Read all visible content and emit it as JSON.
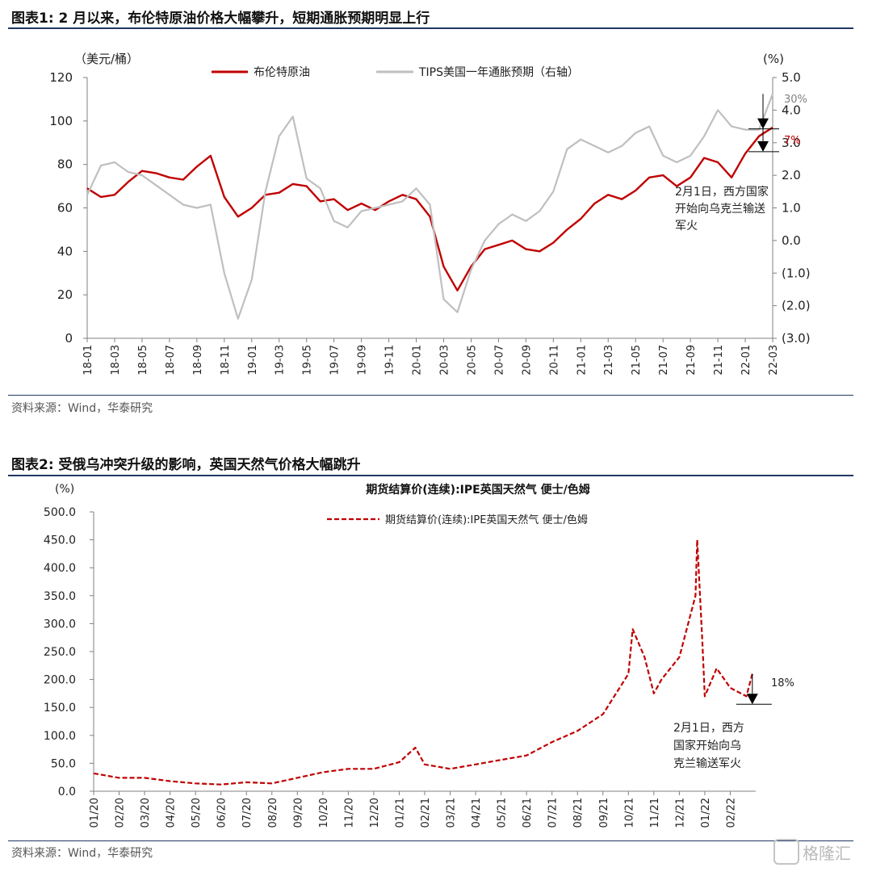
{
  "fig1": {
    "title": "图表1:   2 月以来，布伦特原油价格大幅攀升，短期通胀预期明显上行",
    "source": "资料来源：Wind，华泰研究",
    "annotation": [
      "2月1日，西方国家",
      "开始向乌克兰输送",
      "军火"
    ],
    "callout_grey": "30%",
    "callout_red": "7%"
  },
  "fig2": {
    "title": "图表2:   受俄乌冲突升级的影响，英国天然气价格大幅跳升",
    "source": "资料来源：Wind，华泰研究",
    "annotation": [
      "2月1日，西方",
      "国家开始向乌",
      "克兰输送军火"
    ],
    "callout": "18%"
  },
  "watermark": "格隆汇",
  "chart_data": [
    {
      "type": "line",
      "ylabel": "（美元/桶）",
      "y2label": "(%)",
      "ylim": [
        0,
        120
      ],
      "y2lim": [
        -3.0,
        5.0
      ],
      "yticks": [
        "0",
        "20",
        "40",
        "60",
        "80",
        "100",
        "120"
      ],
      "y2ticks": [
        "(3.0)",
        "(2.0)",
        "(1.0)",
        "0.0",
        "1.0",
        "2.0",
        "3.0",
        "4.0",
        "5.0"
      ],
      "x_range": [
        "2018-01",
        "2022-03"
      ],
      "xticks": [
        "18-01",
        "18-03",
        "18-05",
        "18-07",
        "18-09",
        "18-11",
        "19-01",
        "19-03",
        "19-05",
        "19-07",
        "19-09",
        "19-11",
        "20-01",
        "20-03",
        "20-05",
        "20-07",
        "20-09",
        "20-11",
        "21-01",
        "21-03",
        "21-05",
        "21-07",
        "21-09",
        "21-11",
        "22-01",
        "22-03"
      ],
      "grid": false,
      "legend": "top",
      "series": [
        {
          "name": "布伦特原油",
          "axis": "left",
          "color": "#c00000",
          "x": [
            "2018-01",
            "2018-02",
            "2018-03",
            "2018-04",
            "2018-05",
            "2018-06",
            "2018-07",
            "2018-08",
            "2018-09",
            "2018-10",
            "2018-11",
            "2018-12",
            "2019-01",
            "2019-02",
            "2019-03",
            "2019-04",
            "2019-05",
            "2019-06",
            "2019-07",
            "2019-08",
            "2019-09",
            "2019-10",
            "2019-11",
            "2019-12",
            "2020-01",
            "2020-02",
            "2020-03",
            "2020-04",
            "2020-05",
            "2020-06",
            "2020-07",
            "2020-08",
            "2020-09",
            "2020-10",
            "2020-11",
            "2020-12",
            "2021-01",
            "2021-02",
            "2021-03",
            "2021-04",
            "2021-05",
            "2021-06",
            "2021-07",
            "2021-08",
            "2021-09",
            "2021-10",
            "2021-11",
            "2021-12",
            "2022-01",
            "2022-02",
            "2022-03"
          ],
          "values": [
            69,
            65,
            66,
            72,
            77,
            76,
            74,
            73,
            79,
            84,
            65,
            56,
            60,
            66,
            67,
            71,
            70,
            63,
            64,
            59,
            62,
            59,
            63,
            66,
            64,
            56,
            33,
            22,
            33,
            41,
            43,
            45,
            41,
            40,
            44,
            50,
            55,
            62,
            66,
            64,
            68,
            74,
            75,
            70,
            74,
            83,
            81,
            74,
            85,
            93,
            97
          ]
        },
        {
          "name": "TIPS美国一年通胀预期（右轴）",
          "axis": "right",
          "color": "#bfbfbf",
          "x": [
            "2018-01",
            "2018-02",
            "2018-03",
            "2018-04",
            "2018-05",
            "2018-06",
            "2018-07",
            "2018-08",
            "2018-09",
            "2018-10",
            "2018-11",
            "2018-12",
            "2019-01",
            "2019-02",
            "2019-03",
            "2019-04",
            "2019-05",
            "2019-06",
            "2019-07",
            "2019-08",
            "2019-09",
            "2019-10",
            "2019-11",
            "2019-12",
            "2020-01",
            "2020-02",
            "2020-03",
            "2020-04",
            "2020-05",
            "2020-06",
            "2020-07",
            "2020-08",
            "2020-09",
            "2020-10",
            "2020-11",
            "2020-12",
            "2021-01",
            "2021-02",
            "2021-03",
            "2021-04",
            "2021-05",
            "2021-06",
            "2021-07",
            "2021-08",
            "2021-09",
            "2021-10",
            "2021-11",
            "2021-12",
            "2022-01",
            "2022-02",
            "2022-03"
          ],
          "values": [
            1.4,
            2.3,
            2.4,
            2.1,
            2.0,
            1.7,
            1.4,
            1.1,
            1.0,
            1.1,
            -1.0,
            -2.4,
            -1.2,
            1.5,
            3.2,
            3.8,
            1.9,
            1.6,
            0.6,
            0.4,
            0.9,
            1.0,
            1.1,
            1.2,
            1.6,
            1.1,
            -1.8,
            -2.2,
            -0.9,
            0.0,
            0.5,
            0.8,
            0.6,
            0.9,
            1.5,
            2.8,
            3.1,
            2.9,
            2.7,
            2.9,
            3.3,
            3.5,
            2.6,
            2.4,
            2.6,
            3.2,
            4.0,
            3.5,
            3.4,
            3.4,
            4.5
          ]
        }
      ],
      "annotations": [
        {
          "text": "30%",
          "date": "2022-03",
          "from": 4.5,
          "to": 3.5,
          "axis": "right"
        },
        {
          "text": "7%",
          "date": "2022-03",
          "from": 97,
          "to": 87,
          "axis": "left"
        }
      ]
    },
    {
      "type": "line",
      "title": "期货结算价(连续):IPE英国天然气 便士/色姆",
      "ylabel": "(%)",
      "ylim": [
        0,
        500
      ],
      "yticks": [
        "0.0",
        "50.0",
        "100.0",
        "150.0",
        "200.0",
        "250.0",
        "300.0",
        "350.0",
        "400.0",
        "450.0",
        "500.0"
      ],
      "x_range": [
        "2020-01",
        "2022-02"
      ],
      "xticks": [
        "01/20",
        "02/20",
        "03/20",
        "04/20",
        "05/20",
        "06/20",
        "07/20",
        "08/20",
        "09/20",
        "10/20",
        "11/20",
        "12/20",
        "01/21",
        "02/21",
        "03/21",
        "04/21",
        "05/21",
        "06/21",
        "07/21",
        "08/21",
        "09/21",
        "10/21",
        "11/21",
        "12/21",
        "01/22",
        "02/22"
      ],
      "grid": false,
      "legend": "top",
      "series": [
        {
          "name": "期货结算价(连续):IPE英国天然气 便士/色姆",
          "color": "#c00000",
          "style": "dashed",
          "x": [
            "2020-01",
            "2020-02",
            "2020-03",
            "2020-04",
            "2020-05",
            "2020-06",
            "2020-07",
            "2020-08",
            "2020-09",
            "2020-10",
            "2020-11",
            "2020-12",
            "2021-01",
            "2021-01-20",
            "2021-02",
            "2021-03",
            "2021-04",
            "2021-05",
            "2021-06",
            "2021-07",
            "2021-08",
            "2021-09",
            "2021-10",
            "2021-10-06",
            "2021-10-20",
            "2021-11",
            "2021-11-10",
            "2021-12",
            "2021-12-20",
            "2021-12-22",
            "2021-12-28",
            "2022-01",
            "2022-01-15",
            "2022-02",
            "2022-02-20",
            "2022-02-27"
          ],
          "values": [
            32,
            24,
            24,
            18,
            14,
            12,
            16,
            14,
            24,
            34,
            40,
            40,
            52,
            78,
            48,
            40,
            48,
            56,
            64,
            88,
            108,
            138,
            210,
            290,
            240,
            175,
            200,
            240,
            350,
            450,
            270,
            170,
            220,
            185,
            170,
            210
          ]
        }
      ],
      "annotations": [
        {
          "text": "18%",
          "date": "2022-02-27",
          "from": 210,
          "to": 160
        }
      ]
    }
  ]
}
